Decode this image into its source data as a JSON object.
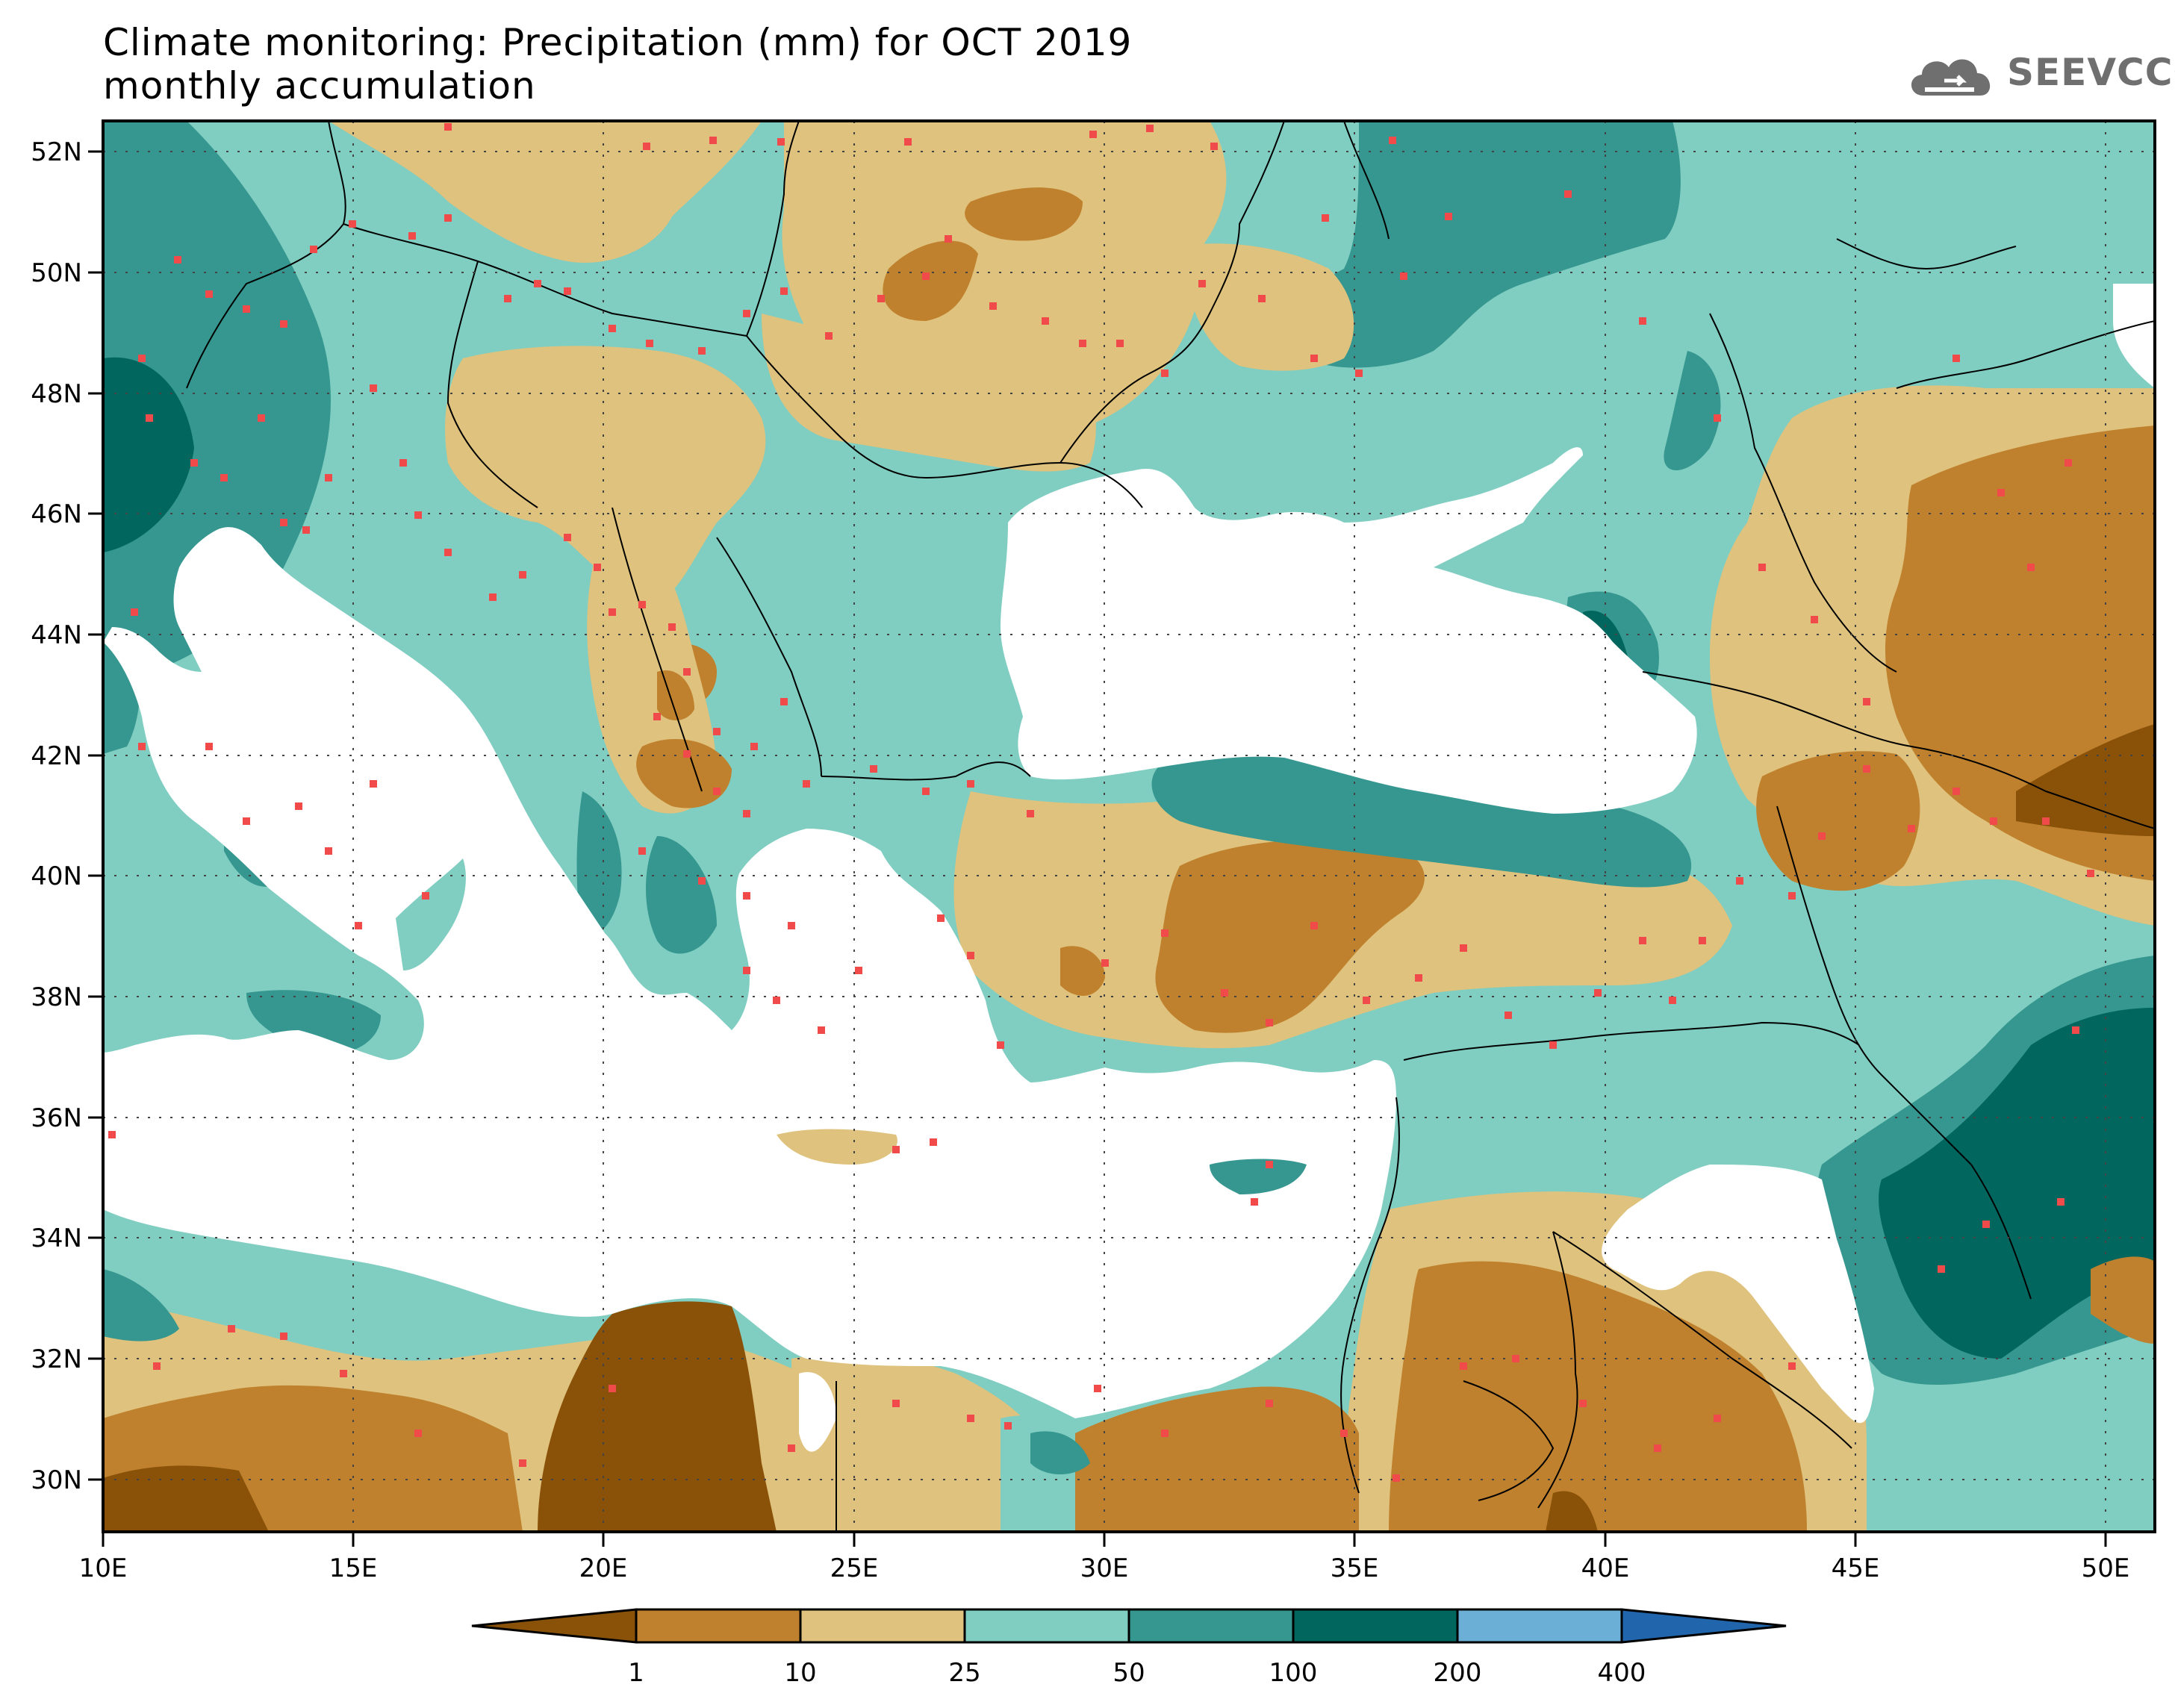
{
  "title": {
    "line1": "Climate monitoring: Precipitation (mm) for OCT 2019",
    "line2": "monthly accumulation"
  },
  "logo": {
    "text": "SEEVCCC",
    "icon": "cloud-icon"
  },
  "map": {
    "lon_range": [
      10,
      51
    ],
    "lat_range": [
      29,
      52.5
    ],
    "lon_ticks": [
      "10E",
      "15E",
      "20E",
      "25E",
      "30E",
      "35E",
      "40E",
      "45E",
      "50E"
    ],
    "lat_ticks": [
      "52N",
      "50N",
      "48N",
      "46N",
      "44N",
      "42N",
      "40N",
      "38N",
      "36N",
      "34N",
      "32N",
      "30N"
    ],
    "station_color": "#f04a4a"
  },
  "colorbar": {
    "thresholds": [
      "1",
      "10",
      "25",
      "50",
      "100",
      "200",
      "400"
    ],
    "colors": [
      "#8a5209",
      "#bf812d",
      "#dfc27d",
      "#80cdc1",
      "#35978f",
      "#01665e",
      "#6baed6",
      "#2166ac"
    ]
  }
}
